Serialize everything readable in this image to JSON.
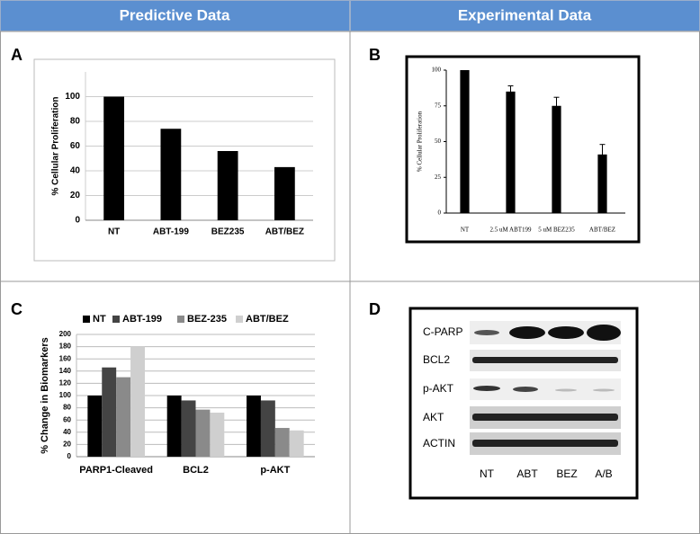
{
  "headers": [
    "Predictive Data",
    "Experimental Data"
  ],
  "panel_labels": [
    "A",
    "B",
    "C",
    "D"
  ],
  "chart_data": [
    {
      "type": "bar",
      "ylabel": "% Cellular Proliferation",
      "categories": [
        "NT",
        "ABT-199",
        "BEZ235",
        "ABT/BEZ"
      ],
      "values": [
        100,
        74,
        56,
        43
      ],
      "color": "#000000",
      "ylim": [
        0,
        120
      ],
      "yticks": [
        0,
        20,
        40,
        60,
        80,
        100
      ],
      "grid": true
    },
    {
      "type": "bar",
      "ylabel": "% Cellular Proliferation",
      "categories": [
        "NT",
        "2.5 uM ABT199",
        "5 uM BEZ235",
        "ABT/BEZ"
      ],
      "values": [
        100,
        85,
        75,
        41
      ],
      "errors": [
        0,
        4,
        6,
        7
      ],
      "color": "#000000",
      "ylim": [
        0,
        100
      ],
      "yticks": [
        0,
        25,
        50,
        75,
        100
      ],
      "grid": false
    },
    {
      "type": "bar",
      "ylabel": "% Change in Biomarkers",
      "categories": [
        "PARP1-Cleaved",
        "BCL2",
        "p-AKT"
      ],
      "series": [
        {
          "name": "NT",
          "color": "#000000",
          "values": [
            100,
            100,
            100
          ]
        },
        {
          "name": "ABT-199",
          "color": "#444444",
          "values": [
            146,
            92,
            92
          ]
        },
        {
          "name": "BEZ-235",
          "color": "#8a8a8a",
          "values": [
            130,
            77,
            47
          ]
        },
        {
          "name": "ABT/BEZ",
          "color": "#cfcfcf",
          "values": [
            180,
            72,
            43
          ]
        }
      ],
      "ylim": [
        0,
        200
      ],
      "yticks": [
        0,
        20,
        40,
        60,
        80,
        100,
        120,
        140,
        160,
        180,
        200
      ],
      "grid": true,
      "legend": "top"
    }
  ],
  "blot": {
    "rows": [
      "C-PARP",
      "BCL2",
      "p-AKT",
      "AKT",
      "ACTIN"
    ],
    "lanes": [
      "NT",
      "ABT",
      "BEZ",
      "A/B"
    ]
  }
}
